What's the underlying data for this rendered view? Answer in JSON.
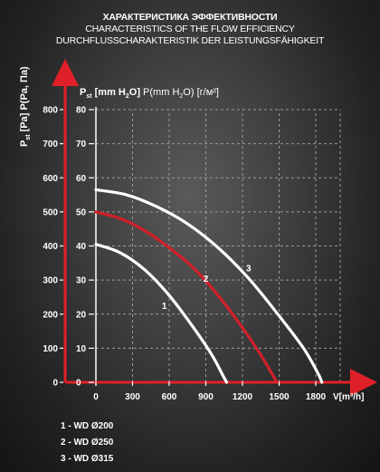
{
  "titles": {
    "ru": "ХАРАКТЕРИСТИКА ЭФФЕКТИВНОСТИ",
    "en": "CHARACTERISTICS OF THE FLOW EFFICIENCY",
    "de": "DURCHFLUSSCHARAKTERISTIK DER LEISTUNGSFÄHIGKEIT"
  },
  "legend": [
    {
      "label": "1 - WD Ø200"
    },
    {
      "label": "2 - WD Ø250"
    },
    {
      "label": "3 - WD Ø315"
    }
  ],
  "chart_data": {
    "type": "line",
    "title": "ХАРАКТЕРИСТИКА ЭФФЕКТИВНОСТИ",
    "xlabel": "V[m³/h]",
    "ylabel_left": "Pst [Pa] P(Pa, Па)",
    "ylabel_top": "Pst [mm H2O] P(mm H2O) [г/м²]",
    "xlim": [
      0,
      2000
    ],
    "ylim_left": [
      0,
      800
    ],
    "ylim_right": [
      0,
      80
    ],
    "x_ticks": [
      0,
      300,
      600,
      900,
      1200,
      1500,
      1800
    ],
    "x_tick_labels": [
      "0",
      "300",
      "600",
      "900",
      "1200",
      "1500",
      "1800"
    ],
    "y_ticks_left": [
      0,
      100,
      200,
      300,
      400,
      500,
      600,
      700,
      800
    ],
    "y_ticks_left_labels": [
      "0",
      "100",
      "200",
      "300",
      "400",
      "500",
      "600",
      "700",
      "800"
    ],
    "y_ticks_right": [
      0,
      10,
      20,
      30,
      40,
      50,
      60,
      70,
      80
    ],
    "y_ticks_right_labels": [
      "0",
      "10",
      "20",
      "30",
      "40",
      "50",
      "60",
      "70",
      "80"
    ],
    "grid": true,
    "series": [
      {
        "name": "1",
        "color": "#ffffff",
        "x": [
          0,
          200,
          400,
          600,
          800,
          950,
          1040,
          1070
        ],
        "y": [
          405,
          380,
          330,
          255,
          160,
          80,
          20,
          0
        ]
      },
      {
        "name": "2",
        "color": "#d0202a",
        "x": [
          0,
          200,
          400,
          600,
          800,
          1000,
          1200,
          1350,
          1450,
          1480
        ],
        "y": [
          500,
          480,
          445,
          395,
          335,
          255,
          160,
          80,
          20,
          0
        ]
      },
      {
        "name": "3",
        "color": "#ffffff",
        "x": [
          0,
          250,
          500,
          750,
          1000,
          1250,
          1500,
          1700,
          1820,
          1850
        ],
        "y": [
          565,
          550,
          515,
          465,
          395,
          305,
          195,
          100,
          25,
          0
        ]
      }
    ],
    "curve_labels": [
      {
        "text": "1",
        "x": 560,
        "y": 215
      },
      {
        "text": "2",
        "x": 900,
        "y": 295
      },
      {
        "text": "3",
        "x": 1250,
        "y": 325
      }
    ]
  }
}
